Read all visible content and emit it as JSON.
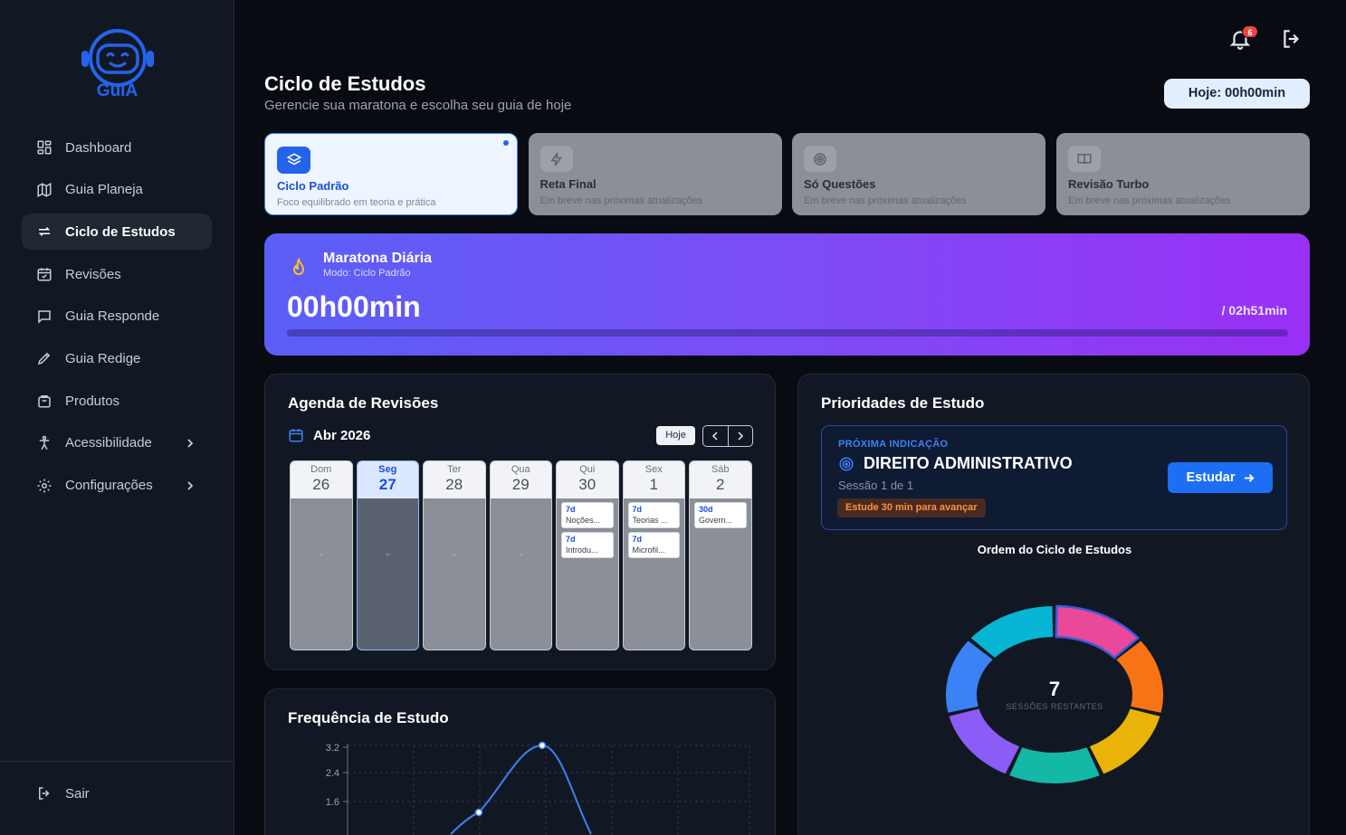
{
  "brand": {
    "name": "GuIA"
  },
  "sidebar": {
    "items": [
      {
        "label": "Dashboard",
        "icon": "dashboard-icon"
      },
      {
        "label": "Guia Planeja",
        "icon": "map-icon"
      },
      {
        "label": "Ciclo de Estudos",
        "icon": "cycle-icon",
        "active": true
      },
      {
        "label": "Revisões",
        "icon": "calendar-check-icon"
      },
      {
        "label": "Guia Responde",
        "icon": "message-icon"
      },
      {
        "label": "Guia Redige",
        "icon": "pen-icon"
      },
      {
        "label": "Produtos",
        "icon": "bag-icon"
      },
      {
        "label": "Acessibilidade",
        "icon": "accessibility-icon",
        "submenu": true
      },
      {
        "label": "Configurações",
        "icon": "gear-icon",
        "submenu": true
      }
    ],
    "logout_label": "Sair"
  },
  "topbar": {
    "notification_count": "6"
  },
  "header": {
    "title": "Ciclo de Estudos",
    "subtitle": "Gerencie sua maratona e escolha seu guia de hoje",
    "today_label": "Hoje: 00h00min"
  },
  "modes": [
    {
      "title": "Ciclo Padrão",
      "desc": "Foco equilibrado em teoria e prática",
      "icon": "layers-icon",
      "active": true
    },
    {
      "title": "Reta Final",
      "desc": "Em breve nas próximas atualizações",
      "icon": "bolt-icon"
    },
    {
      "title": "Só Questões",
      "desc": "Em breve nas próximas atualizações",
      "icon": "target-icon"
    },
    {
      "title": "Revisão Turbo",
      "desc": "Em breve nas próximas atualizações",
      "icon": "book-icon"
    }
  ],
  "marathon": {
    "title": "Maratona Diária",
    "mode": "Modo: Ciclo Padrão",
    "time": "00h00min",
    "goal": "/ 02h51min",
    "progress": 0
  },
  "agenda": {
    "title": "Agenda de Revisões",
    "month": "Abr 2026",
    "today_button": "Hoje",
    "days": [
      {
        "name": "Dom",
        "num": "26",
        "empty": "-",
        "reviews": []
      },
      {
        "name": "Seg",
        "num": "27",
        "today": true,
        "empty": "-",
        "reviews": []
      },
      {
        "name": "Ter",
        "num": "28",
        "empty": "-",
        "reviews": []
      },
      {
        "name": "Qua",
        "num": "29",
        "empty": "-",
        "reviews": []
      },
      {
        "name": "Qui",
        "num": "30",
        "empty": "",
        "reviews": [
          {
            "interval": "7d",
            "subject": "Noções..."
          },
          {
            "interval": "7d",
            "subject": "Introdu..."
          }
        ]
      },
      {
        "name": "Sex",
        "num": "1",
        "empty": "",
        "reviews": [
          {
            "interval": "7d",
            "subject": "Teorias ..."
          },
          {
            "interval": "7d",
            "subject": "Microfil..."
          }
        ]
      },
      {
        "name": "Sáb",
        "num": "2",
        "empty": "",
        "reviews": [
          {
            "interval": "30d",
            "subject": "Govern..."
          }
        ]
      }
    ]
  },
  "frequency": {
    "title": "Frequência de Estudo",
    "y_ticks": [
      "3.2",
      "2.4",
      "1.6"
    ]
  },
  "priorities": {
    "title": "Prioridades de Estudo",
    "next_tag": "PRÓXIMA INDICAÇÃO",
    "next_subject": "DIREITO ADMINISTRATIVO",
    "next_session": "Sessão 1 de 1",
    "next_hint": "Estude 30 min para avançar",
    "study_button": "Estudar",
    "cycle_title": "Ordem do Ciclo de Estudos",
    "remaining_count": "7",
    "remaining_label": "SESSÕES RESTANTES",
    "segments": [
      {
        "color": "#ec4899"
      },
      {
        "color": "#f97316"
      },
      {
        "color": "#eab308"
      },
      {
        "color": "#14b8a6"
      },
      {
        "color": "#8b5cf6"
      },
      {
        "color": "#3b82f6"
      },
      {
        "color": "#06b6d4"
      }
    ]
  }
}
